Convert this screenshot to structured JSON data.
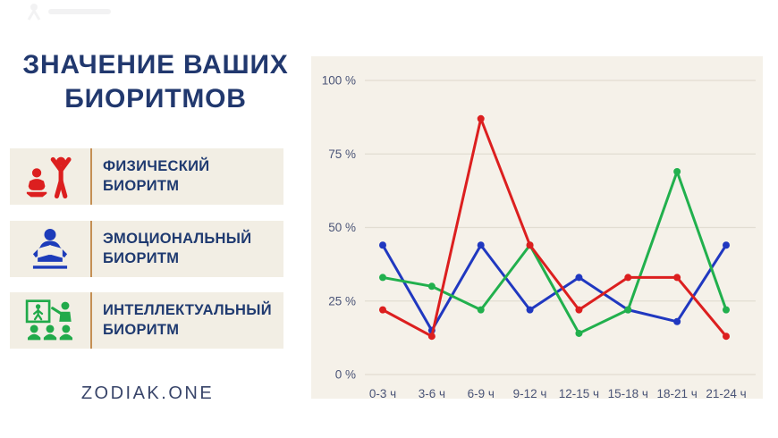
{
  "header": {
    "title_line1": "ЗНАЧЕНИЕ ВАШИХ",
    "title_line2": "БИОРИТМОВ",
    "title_color": "#21386e"
  },
  "legend": {
    "band_color": "#f2eee4",
    "divider_color": "#c48f54",
    "items": [
      {
        "icon": "exercise-icon",
        "color": "#dc1f1f",
        "label_line1": "ФИЗИЧЕСКИЙ",
        "label_line2": "БИОРИТМ"
      },
      {
        "icon": "reading-icon",
        "color": "#1d3cba",
        "label_line1": "ЭМОЦИОНАЛЬНЫЙ",
        "label_line2": "БИОРИТМ"
      },
      {
        "icon": "presentation-icon",
        "color": "#21aa4a",
        "label_line1": "ИНТЕЛЛЕКТУАЛЬНЫЙ",
        "label_line2": "БИОРИТМ"
      }
    ]
  },
  "footer": {
    "brand": "ZODIAK.ONE"
  },
  "chart_data": {
    "type": "line",
    "panel_bg": "#f5f1e9",
    "grid": true,
    "grid_color": "#e2ddd2",
    "legend_position": "left-outside",
    "ylim": [
      0,
      100
    ],
    "categories": [
      "0-3 ч",
      "3-6 ч",
      "6-9 ч",
      "9-12 ч",
      "12-15 ч",
      "15-18 ч",
      "18-21 ч",
      "21-24 ч"
    ],
    "y_ticks": [
      {
        "value": 100,
        "label": "100 %"
      },
      {
        "value": 75,
        "label": "75 %"
      },
      {
        "value": 50,
        "label": "50 %"
      },
      {
        "value": 25,
        "label": "25 %"
      },
      {
        "value": 0,
        "label": "0 %"
      }
    ],
    "series": [
      {
        "name": "Физический биоритм",
        "color": "#dc1f1f",
        "values": [
          22,
          13,
          87,
          44,
          22,
          33,
          33,
          13
        ]
      },
      {
        "name": "Эмоциональный биоритм",
        "color": "#2038c0",
        "values": [
          44,
          15,
          44,
          22,
          33,
          22,
          18,
          44
        ]
      },
      {
        "name": "Интеллектуальный биоритм",
        "color": "#21b04d",
        "values": [
          33,
          30,
          22,
          44,
          14,
          22,
          69,
          22
        ]
      }
    ]
  }
}
